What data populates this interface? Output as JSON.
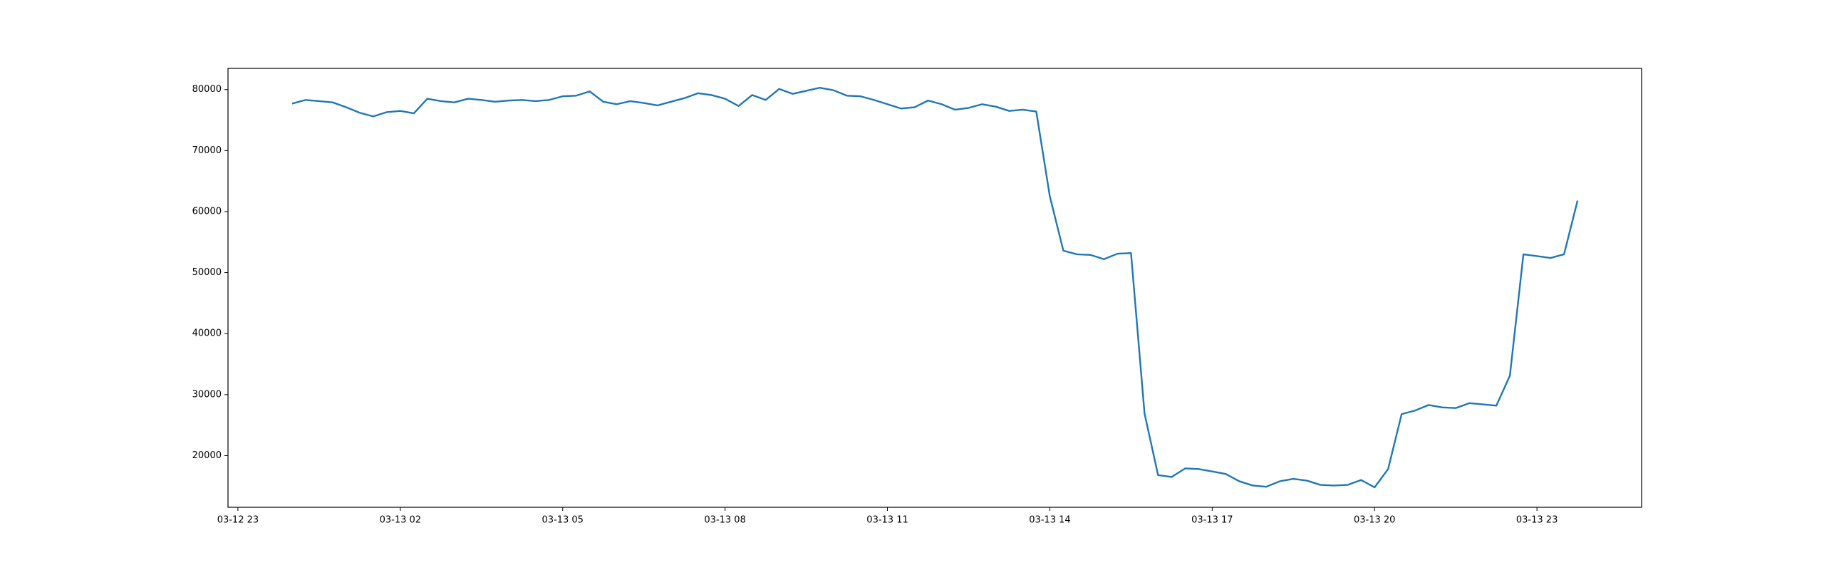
{
  "chart_data": {
    "type": "line",
    "color": "#1f77b4",
    "grid": false,
    "x": [
      "03-13 00:00",
      "03-13 00:15",
      "03-13 00:30",
      "03-13 00:45",
      "03-13 01:00",
      "03-13 01:15",
      "03-13 01:30",
      "03-13 01:45",
      "03-13 02:00",
      "03-13 02:15",
      "03-13 02:30",
      "03-13 02:45",
      "03-13 03:00",
      "03-13 03:15",
      "03-13 03:30",
      "03-13 03:45",
      "03-13 04:00",
      "03-13 04:15",
      "03-13 04:30",
      "03-13 04:45",
      "03-13 05:00",
      "03-13 05:15",
      "03-13 05:30",
      "03-13 05:45",
      "03-13 06:00",
      "03-13 06:15",
      "03-13 06:30",
      "03-13 06:45",
      "03-13 07:00",
      "03-13 07:15",
      "03-13 07:30",
      "03-13 07:45",
      "03-13 08:00",
      "03-13 08:15",
      "03-13 08:30",
      "03-13 08:45",
      "03-13 09:00",
      "03-13 09:15",
      "03-13 09:30",
      "03-13 09:45",
      "03-13 10:00",
      "03-13 10:15",
      "03-13 10:30",
      "03-13 10:45",
      "03-13 11:00",
      "03-13 11:15",
      "03-13 11:30",
      "03-13 11:45",
      "03-13 12:00",
      "03-13 12:15",
      "03-13 12:30",
      "03-13 12:45",
      "03-13 13:00",
      "03-13 13:15",
      "03-13 13:30",
      "03-13 13:45",
      "03-13 14:00",
      "03-13 14:15",
      "03-13 14:30",
      "03-13 14:45",
      "03-13 15:00",
      "03-13 15:15",
      "03-13 15:30",
      "03-13 15:45",
      "03-13 16:00",
      "03-13 16:15",
      "03-13 16:30",
      "03-13 16:45",
      "03-13 17:00",
      "03-13 17:15",
      "03-13 17:30",
      "03-13 17:45",
      "03-13 18:00",
      "03-13 18:15",
      "03-13 18:30",
      "03-13 18:45",
      "03-13 19:00",
      "03-13 19:15",
      "03-13 19:30",
      "03-13 19:45",
      "03-13 20:00",
      "03-13 20:15",
      "03-13 20:30",
      "03-13 20:45",
      "03-13 21:00",
      "03-13 21:15",
      "03-13 21:30",
      "03-13 21:45",
      "03-13 22:00",
      "03-13 22:15",
      "03-13 22:30",
      "03-13 22:45",
      "03-13 23:00",
      "03-13 23:15",
      "03-13 23:30",
      "03-13 23:45"
    ],
    "values": [
      77700,
      78300,
      78100,
      77900,
      77100,
      76200,
      75600,
      76300,
      76500,
      76100,
      78500,
      78100,
      77900,
      78500,
      78300,
      78000,
      78200,
      78300,
      78100,
      78300,
      78900,
      79000,
      79700,
      78000,
      77600,
      78100,
      77800,
      77400,
      78000,
      78600,
      79400,
      79100,
      78500,
      77300,
      79100,
      78300,
      80100,
      79300,
      79800,
      80300,
      79900,
      79000,
      78900,
      78300,
      77600,
      76900,
      77100,
      78200,
      77600,
      76700,
      77000,
      77600,
      77200,
      76500,
      76700,
      76400,
      62500,
      53600,
      53000,
      52900,
      52200,
      53100,
      53200,
      26900,
      16800,
      16500,
      17900,
      17800,
      17400,
      17000,
      15800,
      15100,
      14900,
      15800,
      16200,
      15900,
      15200,
      15100,
      15200,
      16000,
      14800,
      17800,
      26800,
      27400,
      28300,
      27900,
      27800,
      28600,
      28400,
      28200,
      33100,
      53000,
      52700,
      52400,
      53000,
      61800
    ],
    "xlim": [
      "03-12 22:49",
      "03-14 00:56"
    ],
    "xticks": [
      "03-12 23",
      "03-13 02",
      "03-13 05",
      "03-13 08",
      "03-13 11",
      "03-13 14",
      "03-13 17",
      "03-13 20",
      "03-13 23"
    ],
    "ylim": [
      11530,
      83470
    ],
    "yticks": [
      20000,
      30000,
      40000,
      50000,
      60000,
      70000,
      80000
    ]
  }
}
